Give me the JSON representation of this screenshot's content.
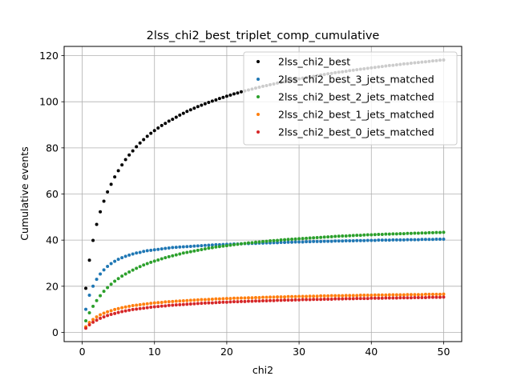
{
  "chart_data": {
    "type": "scatter",
    "title": "2lss_chi2_best_triplet_comp_cumulative",
    "xlabel": "chi2",
    "ylabel": "Cumulative events",
    "xlim": [
      -2.5,
      52.5
    ],
    "ylim": [
      -4,
      124
    ],
    "xticks": [
      0,
      10,
      20,
      30,
      40,
      50
    ],
    "yticks": [
      0,
      20,
      40,
      60,
      80,
      100,
      120
    ],
    "grid": true,
    "legend_position": "top-right",
    "x": [
      0.5,
      1.0,
      1.5,
      2.0,
      2.5,
      3.0,
      3.5,
      4.0,
      4.5,
      5.0,
      5.5,
      6.0,
      6.5,
      7.0,
      7.5,
      8.0,
      8.5,
      9.0,
      9.5,
      10.0,
      10.5,
      11.0,
      11.5,
      12.0,
      12.5,
      13.0,
      13.5,
      14.0,
      14.5,
      15.0,
      15.5,
      16.0,
      16.5,
      17.0,
      17.5,
      18.0,
      18.5,
      19.0,
      19.5,
      20.0,
      20.5,
      21.0,
      21.5,
      22.0,
      22.5,
      23.0,
      23.5,
      24.0,
      24.5,
      25.0,
      25.5,
      26.0,
      26.5,
      27.0,
      27.5,
      28.0,
      28.5,
      29.0,
      29.5,
      30.0,
      30.5,
      31.0,
      31.5,
      32.0,
      32.5,
      33.0,
      33.5,
      34.0,
      34.5,
      35.0,
      35.5,
      36.0,
      36.5,
      37.0,
      37.5,
      38.0,
      38.5,
      39.0,
      39.5,
      40.0,
      40.5,
      41.0,
      41.5,
      42.0,
      42.5,
      43.0,
      43.5,
      44.0,
      44.5,
      45.0,
      45.5,
      46.0,
      46.5,
      47.0,
      47.5,
      48.0,
      48.5,
      49.0,
      49.5,
      50.0
    ],
    "series": [
      {
        "name": "2lss_chi2_best",
        "color": "#000000",
        "values": [
          19.1,
          31.3,
          39.9,
          46.8,
          52.3,
          56.9,
          60.9,
          64.2,
          67.4,
          70.1,
          72.6,
          74.9,
          76.9,
          78.7,
          80.5,
          82.1,
          83.6,
          85.0,
          86.3,
          87.5,
          88.6,
          89.7,
          90.6,
          91.6,
          92.4,
          93.3,
          94.2,
          95.0,
          95.8,
          96.5,
          97.2,
          97.9,
          98.5,
          99.1,
          99.7,
          100.3,
          100.8,
          101.4,
          101.9,
          102.4,
          102.9,
          103.4,
          103.8,
          104.3,
          104.7,
          105.1,
          105.5,
          105.9,
          106.3,
          106.7,
          107.0,
          107.4,
          107.7,
          108.1,
          108.4,
          108.7,
          109.0,
          109.4,
          109.6,
          109.9,
          110.2,
          110.5,
          110.8,
          111.0,
          111.3,
          111.6,
          111.8,
          112.1,
          112.3,
          112.6,
          112.8,
          113.0,
          113.2,
          113.5,
          113.7,
          113.9,
          114.1,
          114.3,
          114.5,
          114.7,
          114.9,
          115.1,
          115.3,
          115.5,
          115.7,
          115.8,
          116.0,
          116.2,
          116.4,
          116.5,
          116.7,
          116.9,
          117.0,
          117.2,
          117.3,
          117.5,
          117.7,
          117.8,
          118.0,
          118.1
        ]
      },
      {
        "name": "2lss_chi2_best_3_jets_matched",
        "color": "#1f77b4",
        "values": [
          10.0,
          16.1,
          20.0,
          23.0,
          25.3,
          27.1,
          28.6,
          29.8,
          30.8,
          31.7,
          32.4,
          33.0,
          33.5,
          34.0,
          34.4,
          34.7,
          35.1,
          35.4,
          35.6,
          35.8,
          36.0,
          36.2,
          36.4,
          36.6,
          36.8,
          36.9,
          37.0,
          37.1,
          37.2,
          37.3,
          37.4,
          37.5,
          37.6,
          37.7,
          37.8,
          37.9,
          38.0,
          38.0,
          38.1,
          38.2,
          38.2,
          38.3,
          38.3,
          38.4,
          38.5,
          38.5,
          38.6,
          38.6,
          38.7,
          38.7,
          38.8,
          38.8,
          38.9,
          38.9,
          39.0,
          39.0,
          39.1,
          39.1,
          39.2,
          39.2,
          39.2,
          39.3,
          39.3,
          39.4,
          39.4,
          39.4,
          39.5,
          39.5,
          39.5,
          39.6,
          39.6,
          39.6,
          39.7,
          39.7,
          39.7,
          39.8,
          39.8,
          39.8,
          39.9,
          39.9,
          39.9,
          40.0,
          40.0,
          40.0,
          40.0,
          40.1,
          40.1,
          40.1,
          40.1,
          40.2,
          40.2,
          40.2,
          40.2,
          40.3,
          40.3,
          40.3,
          40.3,
          40.4,
          40.4,
          40.4
        ]
      },
      {
        "name": "2lss_chi2_best_2_jets_matched",
        "color": "#2ca02c",
        "values": [
          5.0,
          8.5,
          11.3,
          13.8,
          15.9,
          17.8,
          19.4,
          20.9,
          22.2,
          23.3,
          24.4,
          25.3,
          26.2,
          27.0,
          27.8,
          28.5,
          29.2,
          29.8,
          30.4,
          30.9,
          31.4,
          31.9,
          32.4,
          32.8,
          33.2,
          33.6,
          34.0,
          34.4,
          34.7,
          35.0,
          35.3,
          35.6,
          35.9,
          36.2,
          36.5,
          36.7,
          37.0,
          37.2,
          37.4,
          37.6,
          37.8,
          38.0,
          38.2,
          38.4,
          38.6,
          38.8,
          38.9,
          39.1,
          39.2,
          39.4,
          39.5,
          39.7,
          39.8,
          39.9,
          40.1,
          40.2,
          40.3,
          40.4,
          40.5,
          40.6,
          40.7,
          40.8,
          40.9,
          41.0,
          41.1,
          41.2,
          41.3,
          41.4,
          41.5,
          41.6,
          41.7,
          41.8,
          41.8,
          41.9,
          42.0,
          42.1,
          42.1,
          42.2,
          42.3,
          42.3,
          42.4,
          42.5,
          42.5,
          42.6,
          42.6,
          42.7,
          42.7,
          42.8,
          42.8,
          42.9,
          42.9,
          43.0,
          43.0,
          43.1,
          43.1,
          43.2,
          43.2,
          43.3,
          43.3,
          43.4
        ]
      },
      {
        "name": "2lss_chi2_best_1_jets_matched",
        "color": "#ff7f0e",
        "values": [
          2.4,
          4.3,
          5.6,
          6.7,
          7.6,
          8.3,
          8.9,
          9.4,
          9.9,
          10.3,
          10.7,
          11.0,
          11.3,
          11.6,
          11.8,
          12.0,
          12.2,
          12.4,
          12.6,
          12.8,
          12.9,
          13.0,
          13.2,
          13.3,
          13.4,
          13.5,
          13.6,
          13.7,
          13.8,
          13.9,
          14.0,
          14.1,
          14.2,
          14.2,
          14.3,
          14.4,
          14.5,
          14.5,
          14.6,
          14.7,
          14.7,
          14.8,
          14.8,
          14.9,
          14.9,
          15.0,
          15.0,
          15.1,
          15.1,
          15.2,
          15.2,
          15.3,
          15.3,
          15.4,
          15.4,
          15.4,
          15.5,
          15.5,
          15.5,
          15.6,
          15.6,
          15.6,
          15.7,
          15.7,
          15.7,
          15.8,
          15.8,
          15.8,
          15.9,
          15.9,
          15.9,
          15.9,
          16.0,
          16.0,
          16.0,
          16.0,
          16.1,
          16.1,
          16.1,
          16.1,
          16.2,
          16.2,
          16.2,
          16.2,
          16.3,
          16.3,
          16.3,
          16.3,
          16.3,
          16.4,
          16.4,
          16.4,
          16.4,
          16.4,
          16.5,
          16.5,
          16.5,
          16.5,
          16.5,
          16.6
        ]
      },
      {
        "name": "2lss_chi2_best_0_jets_matched",
        "color": "#d62728",
        "values": [
          1.8,
          3.3,
          4.4,
          5.3,
          6.1,
          6.7,
          7.3,
          7.8,
          8.2,
          8.6,
          9.0,
          9.3,
          9.6,
          9.9,
          10.1,
          10.3,
          10.5,
          10.7,
          10.9,
          11.1,
          11.2,
          11.4,
          11.5,
          11.7,
          11.8,
          11.9,
          12.0,
          12.1,
          12.2,
          12.3,
          12.4,
          12.5,
          12.6,
          12.7,
          12.8,
          12.8,
          12.9,
          13.0,
          13.1,
          13.1,
          13.2,
          13.3,
          13.3,
          13.4,
          13.4,
          13.5,
          13.5,
          13.6,
          13.6,
          13.7,
          13.7,
          13.8,
          13.8,
          13.9,
          13.9,
          14.0,
          14.0,
          14.0,
          14.1,
          14.1,
          14.2,
          14.2,
          14.2,
          14.3,
          14.3,
          14.3,
          14.4,
          14.4,
          14.4,
          14.5,
          14.5,
          14.5,
          14.6,
          14.6,
          14.6,
          14.7,
          14.7,
          14.7,
          14.7,
          14.8,
          14.8,
          14.8,
          14.8,
          14.9,
          14.9,
          14.9,
          14.9,
          15.0,
          15.0,
          15.0,
          15.0,
          15.1,
          15.1,
          15.1,
          15.1,
          15.2,
          15.2,
          15.2,
          15.2,
          15.3
        ]
      }
    ]
  }
}
